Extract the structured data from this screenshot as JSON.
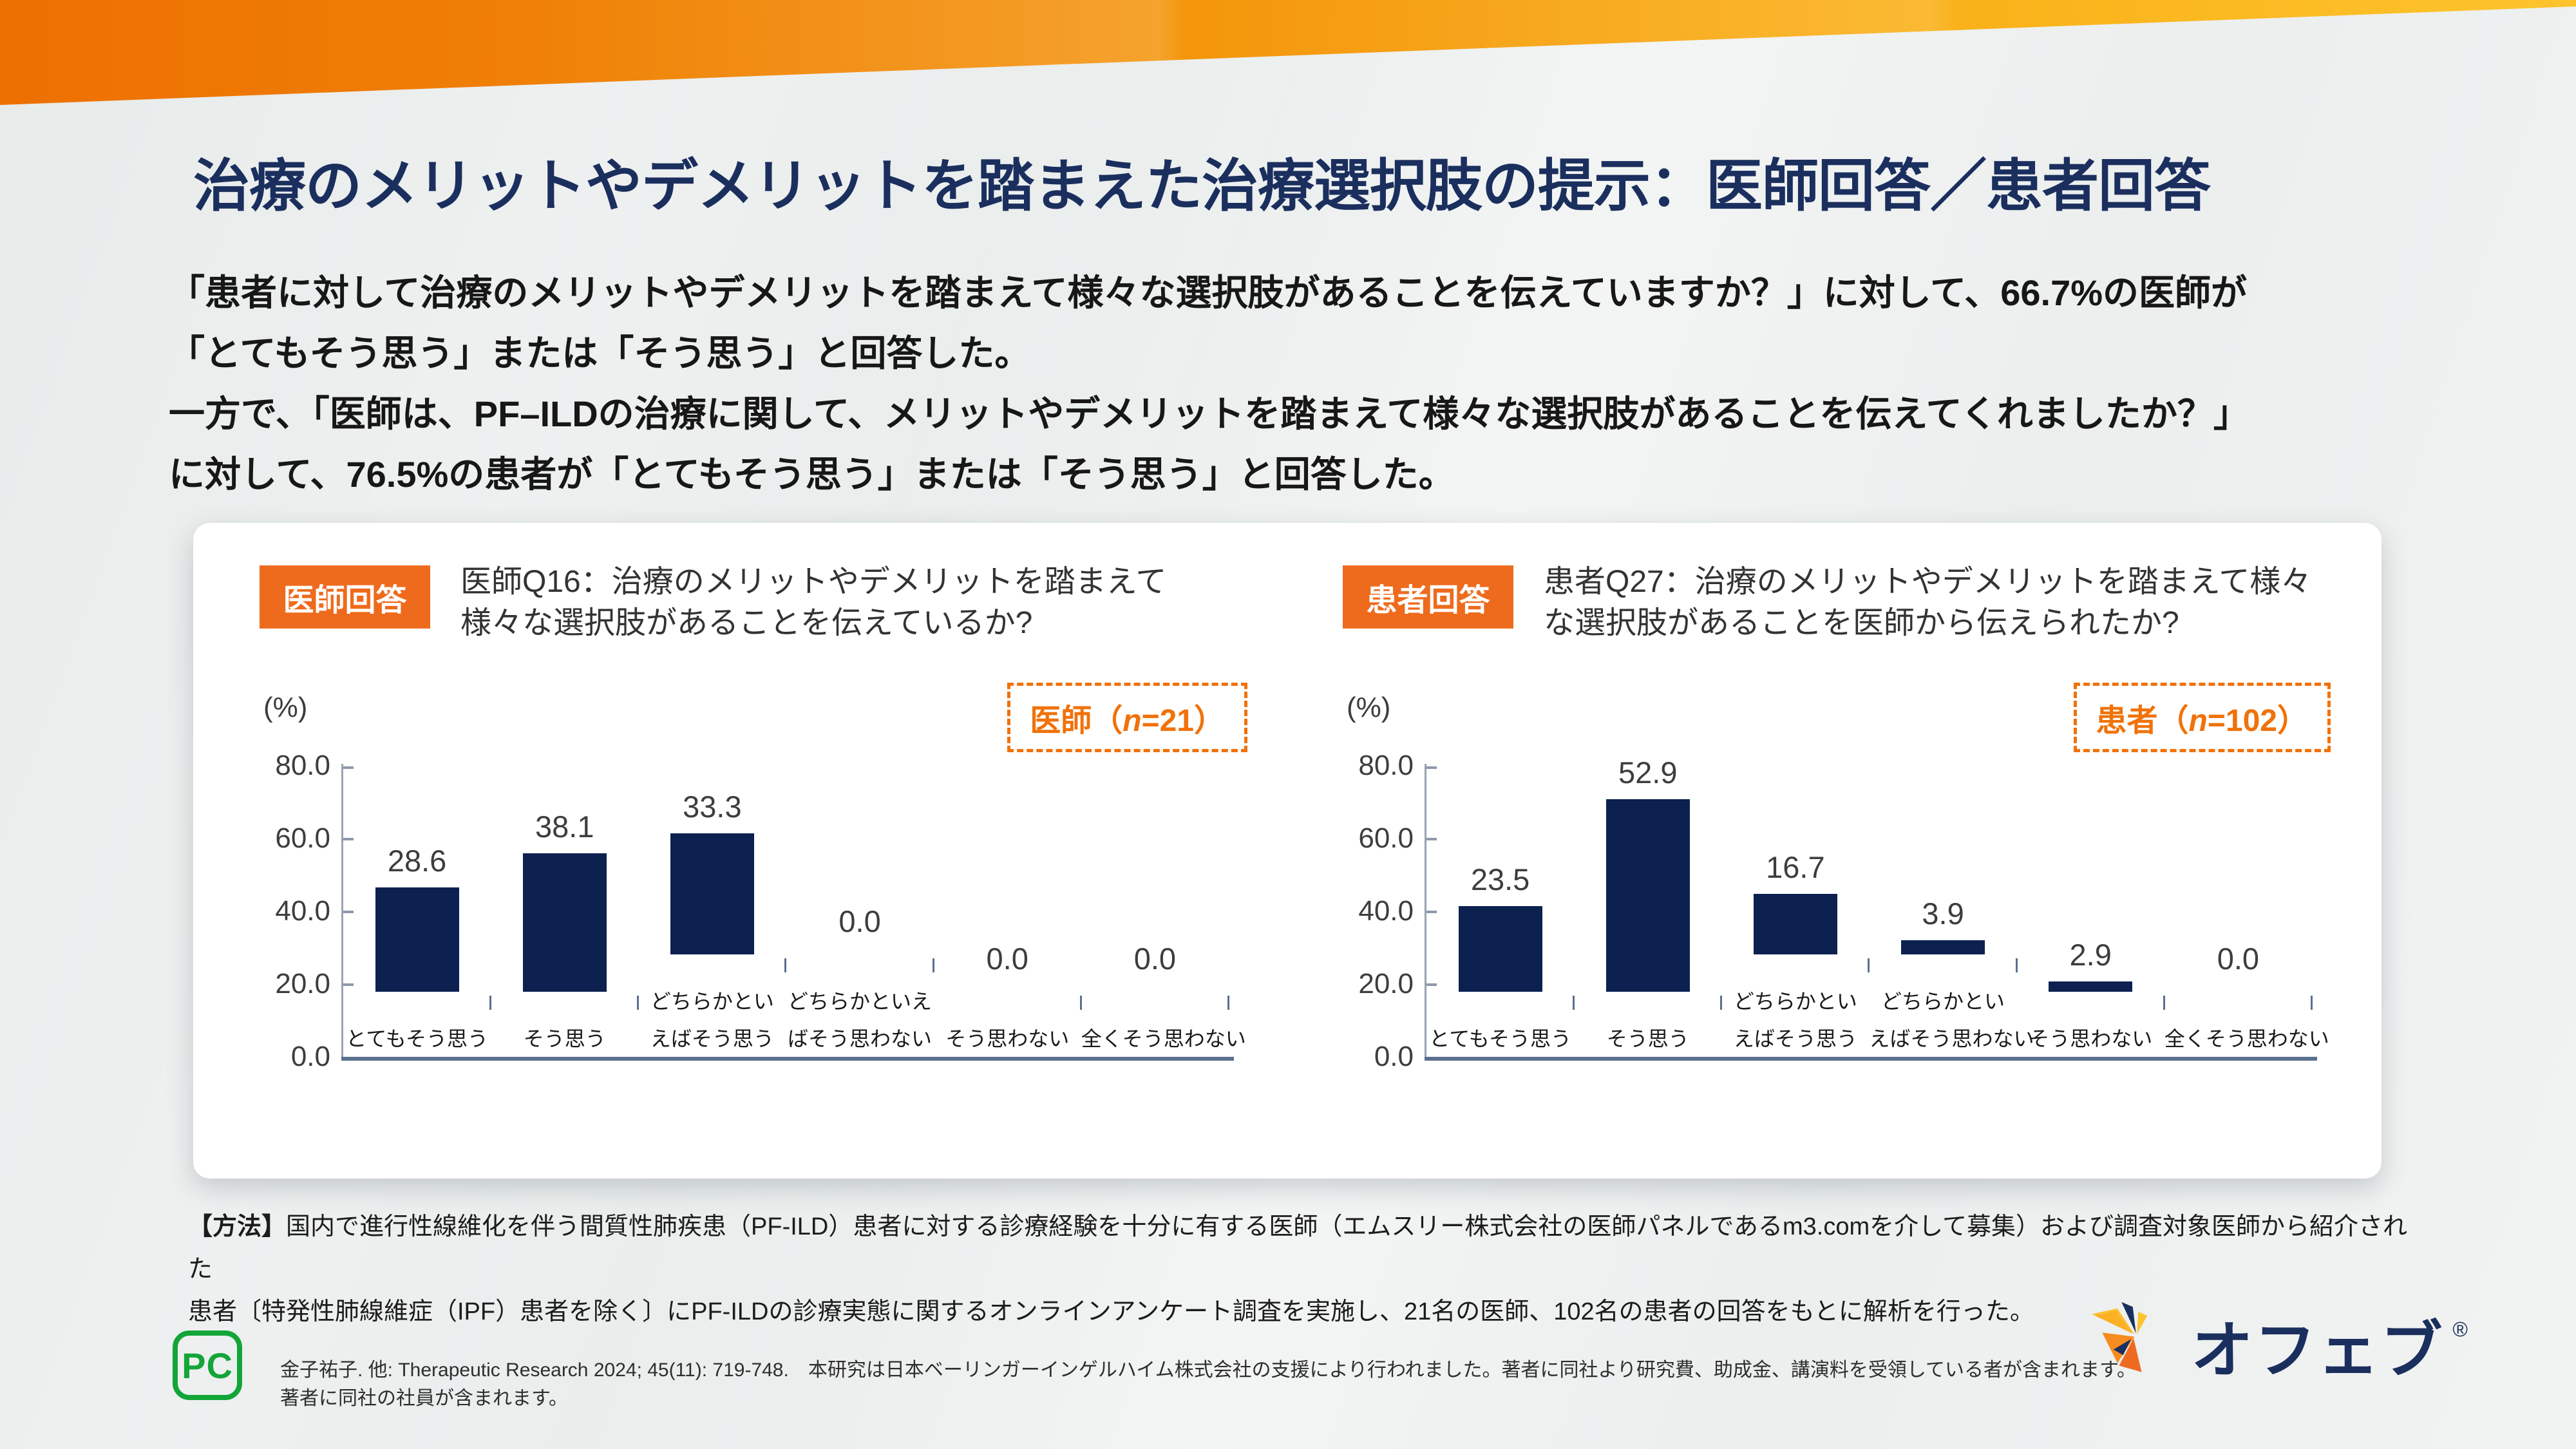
{
  "slide": {
    "title": "治療のメリットやデメリットを踏まえた治療選択肢の提示：医師回答／患者回答",
    "intro_lines": [
      "「患者に対して治療のメリットやデメリットを踏まえて様々な選択肢があることを伝えていますか？」に対して、66.7%の医師が",
      "「とてもそう思う」または「そう思う」と回答した。",
      "一方で、「医師は、PF–ILDの治療に関して、メリットやデメリットを踏まえて様々な選択肢があることを伝えてくれましたか？」",
      "に対して、76.5%の患者が「とてもそう思う」または「そう思う」と回答した。"
    ],
    "colors": {
      "accent_orange": "#ee6b1d",
      "navy": "#1b2f5e",
      "bar_navy": "#0c2150",
      "legend_orange": "#f0720a",
      "band_gradient": [
        "#ed7002",
        "#fdc42d"
      ]
    }
  },
  "charts": [
    {
      "badge": "医師回答",
      "question_line1": "医師Q16：治療のメリットやデメリットを踏まえて",
      "question_line2": "様々な選択肢があることを伝えているか?",
      "unit": "(%)",
      "legend": {
        "prefix": "医師（",
        "n": "n",
        "suffix": "=21）"
      },
      "y_ticks": [
        "80.0",
        "60.0",
        "40.0",
        "20.0",
        "0.0"
      ],
      "categories": [
        [
          "とてもそう思う",
          ""
        ],
        [
          "そう思う",
          ""
        ],
        [
          "どちらかとい",
          "えばそう思う"
        ],
        [
          "どちらかといえ",
          "ばそう思わない"
        ],
        [
          "そう思わない",
          ""
        ],
        [
          "全くそう思わない",
          ""
        ]
      ]
    },
    {
      "badge": "患者回答",
      "question_line1": "患者Q27：治療のメリットやデメリットを踏まえて様々",
      "question_line2": "な選択肢があることを医師から伝えられたか?",
      "unit": "(%)",
      "legend": {
        "prefix": "患者（",
        "n": "n",
        "suffix": "=102）"
      },
      "y_ticks": [
        "80.0",
        "60.0",
        "40.0",
        "20.0",
        "0.0"
      ],
      "categories": [
        [
          "とてもそう思う",
          ""
        ],
        [
          "そう思う",
          ""
        ],
        [
          "どちらかとい",
          "えばそう思う"
        ],
        [
          "どちらかとい",
          "えばそう思わない"
        ],
        [
          "そう思わない",
          ""
        ],
        [
          "全くそう思わない",
          ""
        ]
      ]
    }
  ],
  "chart_data": [
    {
      "type": "bar",
      "title": "医師Q16：治療のメリットやデメリットを踏まえて様々な選択肢があることを伝えているか?",
      "categories": [
        "とてもそう思う",
        "そう思う",
        "どちらかといえばそう思う",
        "どちらかといえばそう思わない",
        "そう思わない",
        "全くそう思わない"
      ],
      "values": [
        28.6,
        38.1,
        33.3,
        0.0,
        0.0,
        0.0
      ],
      "ylabel": "(%)",
      "ylim": [
        0,
        80
      ],
      "legend": "医師（n=21）",
      "grid": false,
      "bar_color": "#0c2150"
    },
    {
      "type": "bar",
      "title": "患者Q27：治療のメリットやデメリットを踏まえて様々な選択肢があることを医師から伝えられたか?",
      "categories": [
        "とてもそう思う",
        "そう思う",
        "どちらかといえばそう思う",
        "どちらかといえばそう思わない",
        "そう思わない",
        "全くそう思わない"
      ],
      "values": [
        23.5,
        52.9,
        16.7,
        3.9,
        2.9,
        0.0
      ],
      "ylabel": "(%)",
      "ylim": [
        0,
        80
      ],
      "legend": "患者（n=102）",
      "grid": false,
      "bar_color": "#0c2150"
    }
  ],
  "method": {
    "label": "【方法】",
    "line1": "国内で進行性線維化を伴う間質性肺疾患（PF-ILD）患者に対する診療経験を十分に有する医師（エムスリー株式会社の医師パネルであるm3.comを介して募集）および調査対象医師から紹介された",
    "line2": "患者〔特発性肺線維症（IPF）患者を除く〕にPF-ILDの診療実態に関するオンラインアンケート調査を実施し、21名の医師、102名の患者の回答をもとに解析を行った。"
  },
  "footer": {
    "pc_mark": "PC",
    "citation": "金子祐子. 他: Therapeutic Research 2024; 45(11): 719-748.　本研究は日本ベーリンガーインゲルハイム株式会社の支援により行われました。著者に同社より研究費、助成金、講演料を受領している者が含まれます。著者に同社の社員が含まれます。",
    "brand": "オフェブ",
    "registered": "®"
  }
}
